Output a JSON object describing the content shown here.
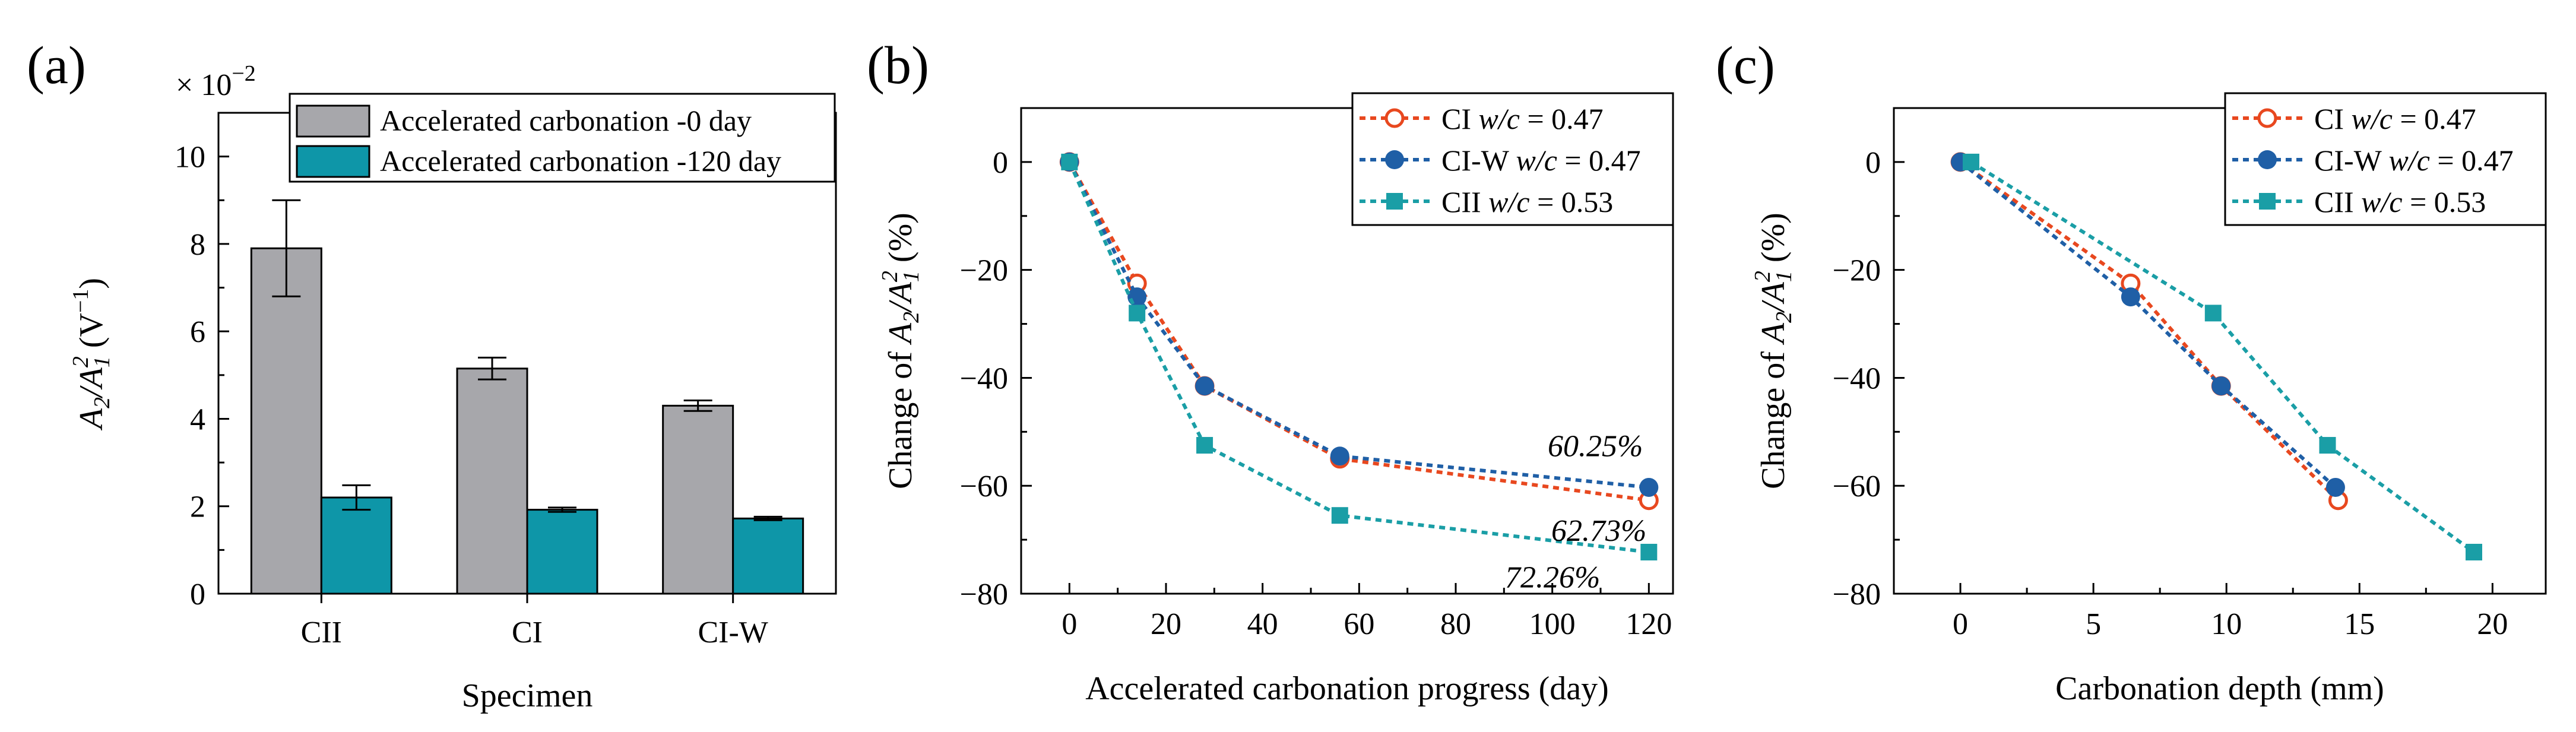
{
  "colors": {
    "gray": "#a7a7ab",
    "teal": "#0e96a8",
    "ci": "#e8481f",
    "ciw": "#1f5fa6",
    "cii": "#1a9ea6"
  },
  "chart_data": [
    {
      "type": "bar",
      "panel": "(a)",
      "title": "",
      "xlabel": "Specimen",
      "ylabel": "A2/A1² (V⁻¹)",
      "ylabel_parts": {
        "a": "A",
        "sub2": "2",
        "slash": "/",
        "a1": "A",
        "sub1": "1",
        "sup2": "2",
        "unit_open": " (V",
        "unit_sup": "−1",
        "unit_close": ")"
      },
      "scale_label": "× 10",
      "scale_exp": "−2",
      "categories": [
        "CII",
        "CI",
        "CI-W"
      ],
      "ylim": [
        0,
        11
      ],
      "yticks": [
        0,
        2,
        4,
        6,
        8,
        10
      ],
      "series": [
        {
          "name": "Accelerated carbonation -0 day",
          "color_key": "gray",
          "values": [
            7.9,
            5.15,
            4.3
          ],
          "errors": [
            1.1,
            0.25,
            0.12
          ]
        },
        {
          "name": "Accelerated carbonation -120 day",
          "color_key": "teal",
          "values": [
            2.2,
            1.92,
            1.72
          ],
          "errors": [
            0.28,
            0.05,
            0.04
          ]
        }
      ],
      "legend": "top-right"
    },
    {
      "type": "line",
      "panel": "(b)",
      "xlabel": "Accelerated carbonation progress (day)",
      "ylabel_prefix": "Change of ",
      "ylabel_suffix": " (%)",
      "xlim": [
        -10,
        125
      ],
      "ylim": [
        -80,
        10
      ],
      "xticks": [
        0,
        20,
        40,
        60,
        80,
        100,
        120
      ],
      "yticks": [
        0,
        -20,
        -40,
        -60,
        -80
      ],
      "series": [
        {
          "name": "CI",
          "wc": "w/c = 0.47",
          "color_key": "ci",
          "marker": "circle-open",
          "x": [
            0,
            14,
            28,
            56,
            120
          ],
          "y": [
            0,
            -22.5,
            -41.5,
            -55,
            -62.7
          ]
        },
        {
          "name": "CI-W",
          "wc": "w/c = 0.47",
          "color_key": "ciw",
          "marker": "circle-filled",
          "x": [
            0,
            14,
            28,
            56,
            120
          ],
          "y": [
            0,
            -25,
            -41.5,
            -54.5,
            -60.3
          ]
        },
        {
          "name": "CII",
          "wc": "w/c = 0.53",
          "color_key": "cii",
          "marker": "square-filled",
          "x": [
            0,
            14,
            28,
            56,
            120
          ],
          "y": [
            0,
            -28,
            -52.5,
            -65.5,
            -72.3
          ]
        }
      ],
      "annotations": [
        {
          "text": "60.25%",
          "x": 120,
          "y": -60.25
        },
        {
          "text": "62.73%",
          "x": 120,
          "y": -62.73
        },
        {
          "text": "72.26%",
          "x": 120,
          "y": -72.26
        }
      ],
      "legend": "top-right"
    },
    {
      "type": "line",
      "panel": "(c)",
      "xlabel": "Carbonation depth (mm)",
      "ylabel_prefix": "Change of ",
      "ylabel_suffix": " (%)",
      "xlim": [
        -2.5,
        22
      ],
      "ylim": [
        -80,
        10
      ],
      "xticks": [
        0,
        5,
        10,
        15,
        20
      ],
      "yticks": [
        0,
        -20,
        -40,
        -60,
        -80
      ],
      "series": [
        {
          "name": "CI",
          "wc": "w/c = 0.47",
          "color_key": "ci",
          "marker": "circle-open",
          "x": [
            0,
            6.4,
            9.8,
            14.2
          ],
          "y": [
            0,
            -22.5,
            -41.5,
            -62.7
          ]
        },
        {
          "name": "CI-W",
          "wc": "w/c = 0.47",
          "color_key": "ciw",
          "marker": "circle-filled",
          "x": [
            0,
            6.4,
            9.8,
            14.1
          ],
          "y": [
            0,
            -25,
            -41.5,
            -60.3
          ]
        },
        {
          "name": "CII",
          "wc": "w/c = 0.53",
          "color_key": "cii",
          "marker": "square-filled",
          "x": [
            0.4,
            9.5,
            13.8,
            19.3
          ],
          "y": [
            0,
            -28,
            -52.5,
            -72.3
          ]
        }
      ],
      "legend": "top-right"
    }
  ]
}
